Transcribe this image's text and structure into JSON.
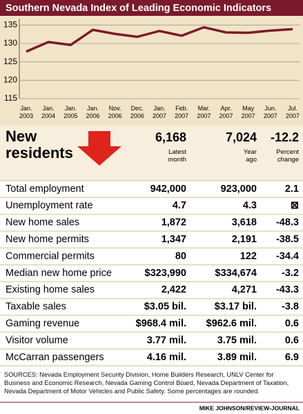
{
  "chart_data": {
    "type": "line",
    "title": "Southern Nevada Index of Leading Economic Indicators",
    "categories": [
      "Jan. 2003",
      "Jan. 2004",
      "Jan. 2005",
      "Jan. 2006",
      "Nov. 2006",
      "Dec. 2006",
      "Jan. 2007",
      "Feb. 2007",
      "Mar. 2007",
      "Apr. 2007",
      "May 2007",
      "Jun. 2007",
      "Jul. 2007"
    ],
    "values": [
      127.8,
      130.4,
      129.6,
      133.7,
      132.6,
      131.8,
      133.4,
      132.1,
      134.4,
      133.0,
      132.9,
      133.5,
      133.9
    ],
    "color": "#7b1a2c",
    "ylim": [
      115,
      136
    ],
    "yticks": [
      115,
      120,
      125,
      130,
      135
    ],
    "grid": true
  },
  "table": {
    "headline": "New residents",
    "headline_values": [
      "6,168",
      "7,024",
      "-12.2"
    ],
    "columns": [
      "Latest month",
      "Year ago",
      "Percent change"
    ],
    "rows": [
      [
        "Total employment",
        "942,000",
        "923,000",
        "2.1"
      ],
      [
        "Unemployment rate",
        "4.7",
        "4.3",
        "⊠"
      ],
      [
        "New home sales",
        "1,872",
        "3,618",
        "-48.3"
      ],
      [
        "New home permits",
        "1,347",
        "2,191",
        "-38.5"
      ],
      [
        "Commercial permits",
        "80",
        "122",
        "-34.4"
      ],
      [
        "Median new home price",
        "$323,990",
        "$334,674",
        "-3.2"
      ],
      [
        "Existing home sales",
        "2,422",
        "4,271",
        "-43.3"
      ],
      [
        "Taxable sales",
        "$3.05 bil.",
        "$3.17 bil.",
        "-3.8"
      ],
      [
        "Gaming revenue",
        "$968.4 mil.",
        "$962.6 mil.",
        "0.6"
      ],
      [
        "Visitor volume",
        "3.77 mil.",
        "3.75 mil.",
        "0.6"
      ],
      [
        "McCarran passengers",
        "4.16 mil.",
        "3.89 mil.",
        "6.9"
      ]
    ]
  },
  "sources": "SOURCES: Nevada Employment Security Division, Home Builders Research, UNLV Center for Business and Economic Research, Nevada Gaming Control Board, Nevada Department of Taxation, Nevada Department of Motor Vehicles and Public Safety. Some percentages are rounded.",
  "credit": "MIKE JOHNSON/REVIEW-JOURNAL"
}
